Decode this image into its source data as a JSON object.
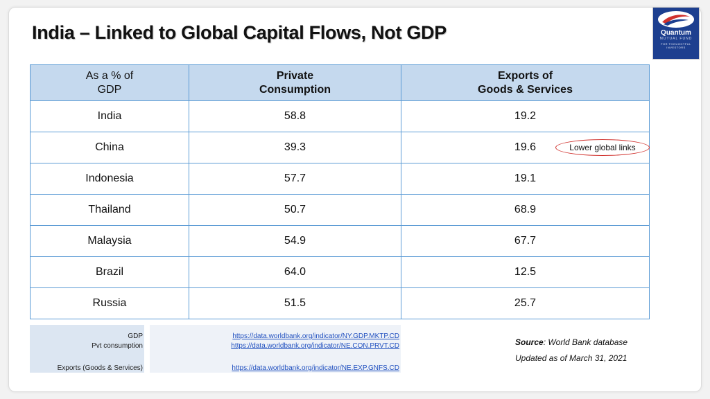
{
  "title": "India – Linked to Global Capital Flows, Not GDP",
  "logo": {
    "name": "Quantum",
    "sub": "MUTUAL FUND",
    "tagline": "FOR THOUGHTFUL INVESTORS",
    "colors": {
      "background": "#1d3f8f",
      "swoosh": "#d0312d"
    }
  },
  "table": {
    "headers": [
      "As a % of\nGDP",
      "Private\nConsumption",
      "Exports of\nGoods & Services"
    ],
    "rows": [
      {
        "country": "India",
        "consumption": "58.8",
        "exports": "19.2"
      },
      {
        "country": "China",
        "consumption": "39.3",
        "exports": "19.6"
      },
      {
        "country": "Indonesia",
        "consumption": "57.7",
        "exports": "19.1"
      },
      {
        "country": "Thailand",
        "consumption": "50.7",
        "exports": "68.9"
      },
      {
        "country": "Malaysia",
        "consumption": "54.9",
        "exports": "67.7"
      },
      {
        "country": "Brazil",
        "consumption": "64.0",
        "exports": "12.5"
      },
      {
        "country": "Russia",
        "consumption": "51.5",
        "exports": "25.7"
      }
    ],
    "annotation": "Lower global links"
  },
  "references": [
    {
      "label": "GDP",
      "url": "https://data.worldbank.org/indicator/NY.GDP.MKTP.CD"
    },
    {
      "label": "Pvt consumption",
      "url": "https://data.worldbank.org/indicator/NE.CON.PRVT.CD"
    },
    {
      "label": "Exports (Goods & Services)",
      "url": "https://data.worldbank.org/indicator/NE.EXP.GNFS.CD"
    }
  ],
  "source": {
    "label": "Source",
    "text": ": World Bank database",
    "updated": "Updated as of March 31, 2021"
  },
  "colors": {
    "header_bg": "#c5d9ee",
    "border": "#5b9bd5",
    "annotation": "#d0312d",
    "link": "#1f4fbf"
  }
}
